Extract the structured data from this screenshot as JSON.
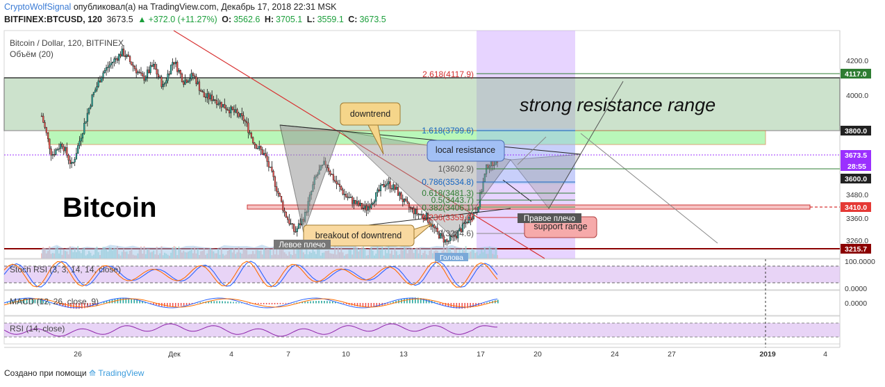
{
  "header": {
    "author": "CryptoWolfSignal",
    "published": "опубликовал(а) на TradingView.com, Декабрь 17, 2018 22:31 MSK",
    "symbol": "BITFINEX:BTCUSD, 120",
    "last": "3673.5",
    "change": "+372.0 (+11.27%)",
    "o_label": "O:",
    "o": "3562.6",
    "h_label": "H:",
    "h": "3705.1",
    "l_label": "L:",
    "l": "3559.1",
    "c_label": "C:",
    "c": "3673.5"
  },
  "footer": {
    "made_with": "Создано при помощи",
    "brand": "TradingView"
  },
  "colors": {
    "up": "#26a69a",
    "down": "#ef5350",
    "resistance_zone": "#8fbf8f",
    "fib_zone": "#c9a0ff"
  },
  "chart_data": [
    {
      "type": "candlestick",
      "legend": [
        "Bitcoin / Dollar, 120, BITFINEX",
        "Объём (20)"
      ],
      "y_ticks": [
        "4200.0",
        "4000.0",
        "3480.0",
        "3360.0",
        "3260.0"
      ],
      "x_ticks": [
        "26",
        "Дек",
        "4",
        "7",
        "10",
        "13",
        "17",
        "20",
        "24",
        "27",
        "2019",
        "4"
      ],
      "price_labels": [
        "4117.0",
        "3800.0",
        "3673.5",
        "28:55",
        "3600.0",
        "3410.0",
        "3215.7"
      ],
      "close_path": [
        3900,
        3700,
        3760,
        3640,
        3820,
        4000,
        4120,
        4180,
        4230,
        4160,
        4090,
        4160,
        4050,
        4190,
        4080,
        4110,
        4000,
        3990,
        3950,
        3920,
        3880,
        3760,
        3700,
        3560,
        3400,
        3300,
        3390,
        3580,
        3660,
        3560,
        3490,
        3450,
        3420,
        3490,
        3560,
        3520,
        3440,
        3400,
        3380,
        3300,
        3250,
        3290,
        3360,
        3420,
        3650,
        3673
      ],
      "fib_levels": [
        {
          "label": "2.618(4117.9)"
        },
        {
          "label": "1.618(3799.6)"
        },
        {
          "label": "1(3602.9)"
        },
        {
          "label": "0.786(3534.8)"
        },
        {
          "label": "0.618(3481.3)"
        },
        {
          "label": "0.5(3443.7)"
        },
        {
          "label": "0.382(3406.1)"
        },
        {
          "label": "0.236(3359.0)"
        },
        {
          "label": "0(3284.6)"
        }
      ],
      "annotations": {
        "logo": "Bitcoin",
        "strong_resistance": "strong resistance range",
        "downtrend": "downtrend",
        "local_resistance": "local resistance",
        "breakout": "breakout of downtrend",
        "left_shoulder": "Левое плечо",
        "right_shoulder": "Правое плечо",
        "head": "Голова",
        "support_range": "support range"
      }
    },
    {
      "type": "line",
      "title": "Stoch RSI (3, 3, 14, 14, close)",
      "y_ticks": [
        "100.0000",
        "0.0000"
      ],
      "band": [
        20,
        80
      ]
    },
    {
      "type": "bar",
      "title": "MACD (12, 26, close, 9)",
      "y_ticks": [
        "0.0000"
      ]
    },
    {
      "type": "line",
      "title": "RSI (14, close)",
      "band": [
        30,
        70
      ]
    }
  ]
}
